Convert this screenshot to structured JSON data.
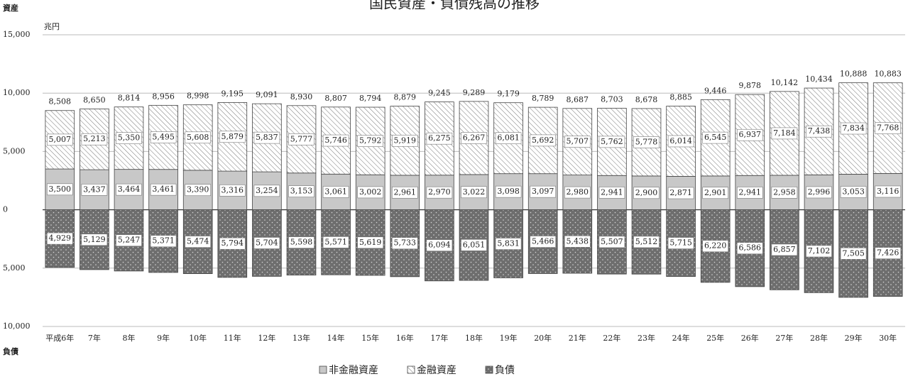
{
  "chart_data": {
    "type": "stacked-bar",
    "title": "国民資産・負債残高の推移",
    "asset_label": "資産",
    "liability_label": "負債",
    "unit": "兆円",
    "categories": [
      "平成6年",
      "7年",
      "8年",
      "9年",
      "10年",
      "11年",
      "12年",
      "13年",
      "14年",
      "15年",
      "16年",
      "17年",
      "18年",
      "19年",
      "20年",
      "21年",
      "22年",
      "23年",
      "24年",
      "25年",
      "26年",
      "27年",
      "28年",
      "29年",
      "30年"
    ],
    "ylim": [
      -10000,
      15000
    ],
    "yticks": [
      {
        "value": -10000,
        "label": "10,000"
      },
      {
        "value": -5000,
        "label": "5,000"
      },
      0,
      {
        "value": 5000,
        "label": "5,000"
      },
      {
        "value": 10000,
        "label": "10,000"
      },
      {
        "value": 15000,
        "label": "15,000"
      }
    ],
    "grid": true,
    "series": [
      {
        "name": "非金融資産",
        "color": "#c8c8c8",
        "pattern": "none",
        "values": [
          3500,
          3437,
          3464,
          3461,
          3390,
          3316,
          3254,
          3153,
          3061,
          3002,
          2961,
          2970,
          3022,
          3098,
          3097,
          2980,
          2941,
          2900,
          2871,
          2901,
          2941,
          2958,
          2996,
          3053,
          3116
        ],
        "value_labels": [
          "3,500",
          "3,437",
          "3,464",
          "3,461",
          "3,390",
          "3,316",
          "3,254",
          "3,153",
          "3,061",
          "3,002",
          "2,961",
          "2,970",
          "3,022",
          "3,098",
          "3,097",
          "2,980",
          "2,941",
          "2,900",
          "2,871",
          "2,901",
          "2,941",
          "2,958",
          "2,996",
          "3,053",
          "3,116"
        ]
      },
      {
        "name": "金融資産",
        "color": "#ffffff",
        "pattern": "hatch",
        "values": [
          5007,
          5213,
          5350,
          5495,
          5608,
          5879,
          5837,
          5777,
          5746,
          5792,
          5919,
          6275,
          6267,
          6081,
          5692,
          5707,
          5762,
          5778,
          6014,
          6545,
          6937,
          7184,
          7438,
          7834,
          7768
        ],
        "value_labels": [
          "5,007",
          "5,213",
          "5,350",
          "5,495",
          "5,608",
          "5,879",
          "5,837",
          "5,777",
          "5,746",
          "5,792",
          "5,919",
          "6,275",
          "6,267",
          "6,081",
          "5,692",
          "5,707",
          "5,762",
          "5,778",
          "6,014",
          "6,545",
          "6,937",
          "7,184",
          "7,438",
          "7,834",
          "7,768"
        ]
      },
      {
        "name": "負債",
        "color": "#6e6e6e",
        "pattern": "dots",
        "values": [
          -4929,
          -5129,
          -5247,
          -5371,
          -5474,
          -5794,
          -5704,
          -5598,
          -5571,
          -5619,
          -5733,
          -6094,
          -6051,
          -5831,
          -5466,
          -5438,
          -5507,
          -5512,
          -5715,
          -6220,
          -6586,
          -6857,
          -7102,
          -7505,
          -7426
        ],
        "value_labels": [
          "4,929",
          "5,129",
          "5,247",
          "5,371",
          "5,474",
          "5,794",
          "5,704",
          "5,598",
          "5,571",
          "5,619",
          "5,733",
          "6,094",
          "6,051",
          "5,831",
          "5,466",
          "5,438",
          "5,507",
          "5,512",
          "5,715",
          "6,220",
          "6,586",
          "6,857",
          "7,102",
          "7,505",
          "7,426"
        ]
      }
    ],
    "totals": {
      "values": [
        8508,
        8650,
        8814,
        8956,
        8998,
        9195,
        9091,
        8930,
        8807,
        8794,
        8879,
        9245,
        9289,
        9179,
        8789,
        8687,
        8703,
        8678,
        8885,
        9446,
        9878,
        10142,
        10434,
        10888,
        10883
      ],
      "value_labels": [
        "8,508",
        "8,650",
        "8,814",
        "8,956",
        "8,998",
        "9,195",
        "9,091",
        "8,930",
        "8,807",
        "8,794",
        "8,879",
        "9,245",
        "9,289",
        "9,179",
        "8,789",
        "8,687",
        "8,703",
        "8,678",
        "8,885",
        "9,446",
        "9,878",
        "10,142",
        "10,434",
        "10,888",
        "10,883"
      ]
    }
  }
}
